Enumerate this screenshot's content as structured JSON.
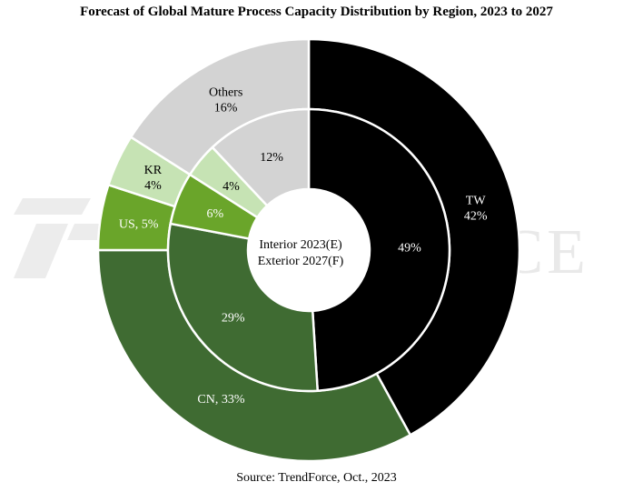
{
  "title": "Forecast of Global Mature Process Capacity Distribution by Region, 2023 to 2027",
  "source": "Source: TrendForce, Oct., 2023",
  "watermark": "TRENDFORCE",
  "center_label": {
    "line1": "Interior  2023(E)",
    "line2": "Exterior 2027(F)"
  },
  "chart_data": {
    "type": "pie",
    "subtype": "donut-nested",
    "title": "Forecast of Global Mature Process Capacity Distribution by Region, 2023 to 2027",
    "categories": [
      "TW",
      "CN",
      "US",
      "KR",
      "Others"
    ],
    "series": [
      {
        "name": "2023(E)",
        "ring": "interior",
        "values": [
          49,
          29,
          6,
          4,
          12
        ],
        "labels": [
          "49%",
          "29%",
          "6%",
          "4%",
          "12%"
        ]
      },
      {
        "name": "2027(F)",
        "ring": "exterior",
        "values": [
          42,
          33,
          5,
          4,
          16
        ],
        "labels": [
          "TW\n42%",
          "CN, 33%",
          "US, 5%",
          "KR\n4%",
          "Others\n16%"
        ]
      }
    ],
    "colors": {
      "TW": "#000000",
      "CN": "#3f6b32",
      "US": "#6aa52a",
      "KR": "#c6e3b4",
      "Others": "#d3d3d3"
    },
    "label_colors": {
      "TW": "#ffffff",
      "CN": "#ffffff",
      "US": "#ffffff",
      "KR": "#000000",
      "Others": "#000000"
    }
  }
}
